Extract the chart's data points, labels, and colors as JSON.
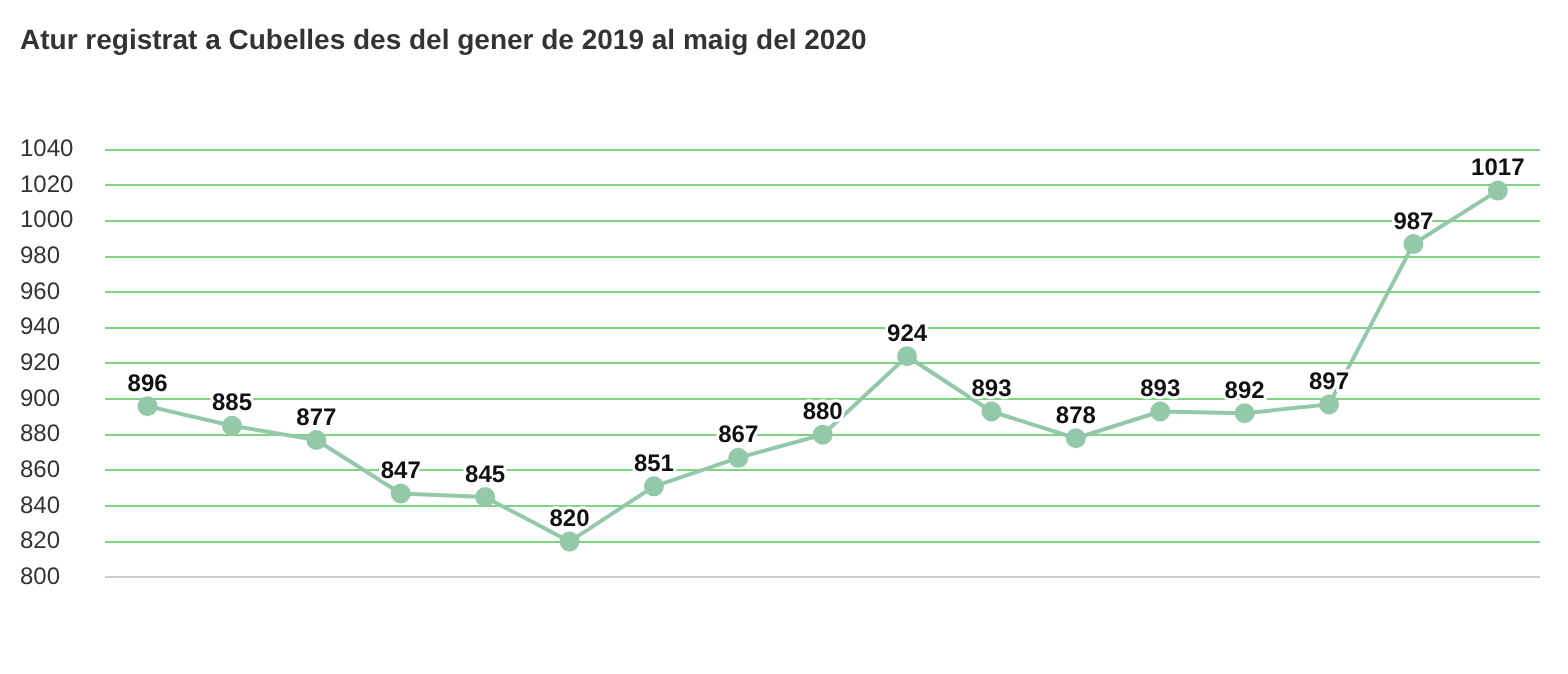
{
  "chart_data": {
    "type": "line",
    "title": "Atur registrat a Cubelles des del gener de 2019 al maig del 2020",
    "categories": [
      null,
      null,
      null,
      null,
      null,
      null,
      null,
      null,
      null,
      null,
      null,
      null,
      null,
      null,
      null,
      null,
      null
    ],
    "series": [
      {
        "color": "#93c9a8",
        "values": [
          896,
          885,
          877,
          847,
          845,
          820,
          851,
          867,
          880,
          924,
          893,
          878,
          893,
          892,
          897,
          987,
          1017
        ]
      }
    ],
    "ylim": [
      800,
      1040
    ],
    "yticks": [
      800,
      820,
      840,
      860,
      880,
      900,
      920,
      940,
      960,
      980,
      1000,
      1020,
      1040
    ],
    "grid": "y",
    "legend": false,
    "marker": "circle",
    "line_style": "solid",
    "data_labels": true
  }
}
